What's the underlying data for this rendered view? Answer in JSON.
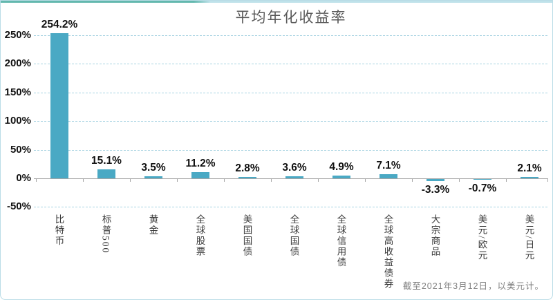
{
  "chart_data": {
    "type": "bar",
    "title": "平均年化收益率",
    "categories": [
      "比特币",
      "标普500",
      "黄金",
      "全球股票",
      "美国国债",
      "全球国债",
      "全球信用债",
      "全球高收益债券",
      "大宗商品",
      "美元/欧元",
      "美元/日元"
    ],
    "values": [
      254.2,
      15.1,
      3.5,
      11.2,
      2.8,
      3.6,
      4.9,
      7.1,
      -3.3,
      -0.7,
      2.1
    ],
    "data_labels": [
      "254.2%",
      "15.1%",
      "3.5%",
      "11.2%",
      "2.8%",
      "3.6%",
      "4.9%",
      "7.1%",
      "-3.3%",
      "-0.7%",
      "2.1%"
    ],
    "xlabel": "",
    "ylabel": "",
    "ylim": [
      -50,
      250
    ],
    "y_tick_values": [
      250,
      200,
      150,
      100,
      50,
      0,
      -50
    ],
    "y_tick_labels": [
      "250%",
      "200%",
      "150%",
      "100%",
      "50%",
      "0%",
      "-50%"
    ],
    "grid": "horizontal-dashed",
    "legend": "none",
    "bar_color": "#4aa9c4",
    "note": "截至2021年3月12日，以美元计。"
  }
}
